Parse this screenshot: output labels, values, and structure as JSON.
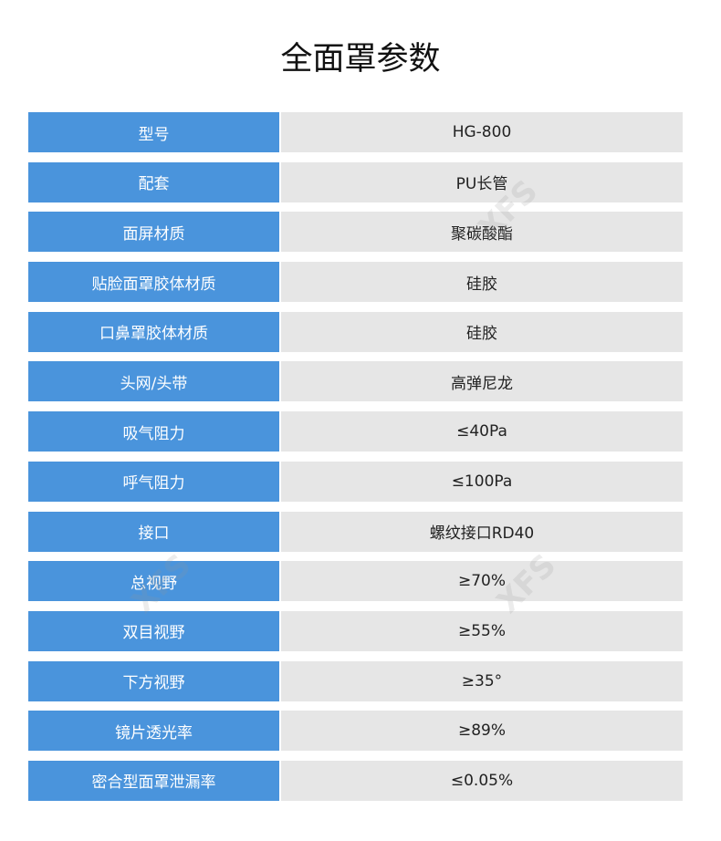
{
  "title": "全面罩参数",
  "watermark": "鑫方盛 XFS.COM",
  "rows": [
    {
      "label": "型号",
      "value": "HG-800"
    },
    {
      "label": "配套",
      "value": "PU长管"
    },
    {
      "label": "面屏材质",
      "value": "聚碳酸酯"
    },
    {
      "label": "贴脸面罩胶体材质",
      "value": "硅胶"
    },
    {
      "label": "口鼻罩胶体材质",
      "value": "硅胶"
    },
    {
      "label": "头网/头带",
      "value": "高弹尼龙"
    },
    {
      "label": "吸气阻力",
      "value": "≤40Pa"
    },
    {
      "label": "呼气阻力",
      "value": "≤100Pa"
    },
    {
      "label": "接口",
      "value": "螺纹接口RD40"
    },
    {
      "label": "总视野",
      "value": "≥70%"
    },
    {
      "label": "双目视野",
      "value": "≥55%"
    },
    {
      "label": "下方视野",
      "value": "≥35°"
    },
    {
      "label": "镜片透光率",
      "value": "≥89%"
    },
    {
      "label": "密合型面罩泄漏率",
      "value": "≤0.05%"
    }
  ],
  "colors": {
    "label_bg": "#4a94dc",
    "value_bg": "#e6e6e6"
  }
}
